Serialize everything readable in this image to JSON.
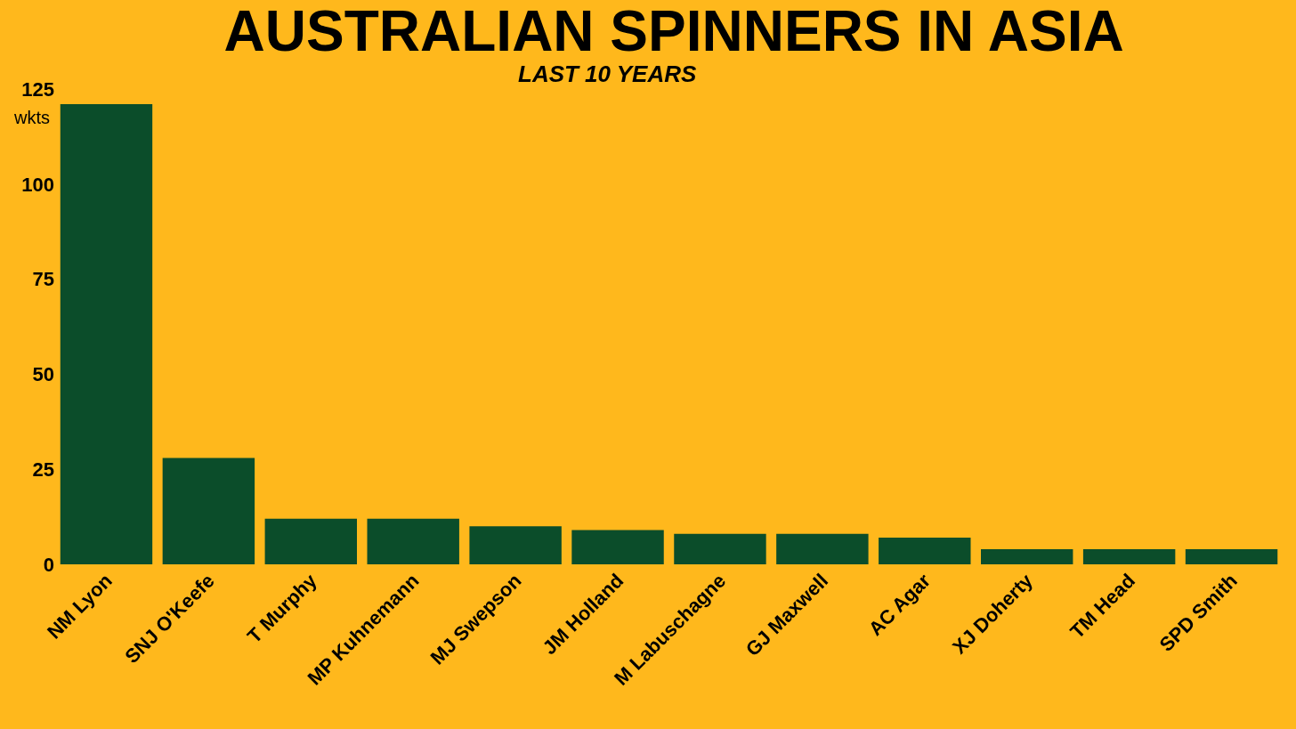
{
  "chart_data": {
    "type": "bar",
    "title": "AUSTRALIAN SPINNERS IN ASIA",
    "subtitle": "LAST 10 YEARS",
    "ylabel": "wkts",
    "categories": [
      "NM Lyon",
      "SNJ O'Keefe",
      "T Murphy",
      "MP Kuhnemann",
      "MJ Swepson",
      "JM Holland",
      "M Labuschagne",
      "GJ Maxwell",
      "AC Agar",
      "XJ Doherty",
      "TM Head",
      "SPD Smith"
    ],
    "values": [
      121,
      28,
      12,
      12,
      10,
      9,
      8,
      8,
      7,
      4,
      4,
      4
    ],
    "color": "#0b4d2a",
    "ylim": [
      0,
      125
    ],
    "yticks": [
      0,
      25,
      50,
      75,
      100,
      125
    ],
    "grid": false,
    "legend": false
  }
}
